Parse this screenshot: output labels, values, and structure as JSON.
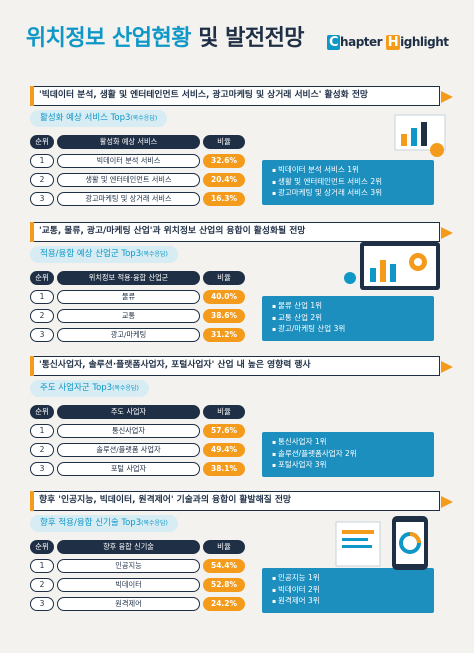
{
  "title": {
    "main": "위치정보 산업현황",
    "sub": "및 발전전망"
  },
  "brand": {
    "c": "C",
    "chapter": "hapter",
    "h": "H",
    "highlight": "ighlight"
  },
  "colors": {
    "accent": "#0e97c7",
    "orange": "#f49b1b",
    "navy": "#1f2f45"
  },
  "sections": [
    {
      "headline": "'빅데이터 분석, 생활 및 엔터테인먼트 서비스, 광고마케팅 및 상거래 서비스' 활성화 전망",
      "subtitle": "활성화 예상 서비스 Top3",
      "subtitle_note": "(복수응답)",
      "header": {
        "rank": "순위",
        "name": "활성화 예상 서비스",
        "value": "비율"
      },
      "rows": [
        {
          "rank": "1",
          "name": "빅데이터 분석 서비스",
          "value": "32.6%"
        },
        {
          "rank": "2",
          "name": "생활 및 엔터테인먼트 서비스",
          "value": "20.4%"
        },
        {
          "rank": "3",
          "name": "광고마케팅 및 상거래 서비스",
          "value": "16.3%"
        }
      ],
      "summary": [
        "빅데이터 분석 서비스 1위",
        "생활 및 엔터테인먼트 서비스 2위",
        "광고마케팅 및 상거래 서비스 3위"
      ]
    },
    {
      "headline": "'교통, 물류, 광고/마케팅 산업'과 위치정보 산업의 융합이 활성화될 전망",
      "subtitle": "적용/융합 예상 산업군 Top3",
      "subtitle_note": "(복수응답)",
      "header": {
        "rank": "순위",
        "name": "위치정보 적용·융합 산업군",
        "value": "비율"
      },
      "rows": [
        {
          "rank": "1",
          "name": "물류",
          "value": "40.0%"
        },
        {
          "rank": "2",
          "name": "교통",
          "value": "38.6%"
        },
        {
          "rank": "3",
          "name": "광고/마케팅",
          "value": "31.2%"
        }
      ],
      "summary": [
        "물류 산업 1위",
        "교통 산업 2위",
        "광고/마케팅 산업 3위"
      ]
    },
    {
      "headline": "'통신사업자, 솔루션·플랫폼사업자, 포털사업자' 산업 내 높은 영향력 행사",
      "subtitle": "주도 사업자군 Top3",
      "subtitle_note": "(복수응답)",
      "header": {
        "rank": "순위",
        "name": "주도 사업자",
        "value": "비율"
      },
      "rows": [
        {
          "rank": "1",
          "name": "통신사업자",
          "value": "57.6%"
        },
        {
          "rank": "2",
          "name": "솔루션/플랫폼 사업자",
          "value": "49.4%"
        },
        {
          "rank": "3",
          "name": "포털 사업자",
          "value": "38.1%"
        }
      ],
      "summary": [
        "통신사업자 1위",
        "솔루션/플랫폼사업자 2위",
        "포털사업자 3위"
      ]
    },
    {
      "headline": "향후 '인공지능, 빅데이터, 원격제어' 기술과의 융합이 활발해질 전망",
      "subtitle": "향후 적용/융합 신기술 Top3",
      "subtitle_note": "(복수응답)",
      "header": {
        "rank": "순위",
        "name": "향후 융합 신기술",
        "value": "비율"
      },
      "rows": [
        {
          "rank": "1",
          "name": "인공지능",
          "value": "54.4%"
        },
        {
          "rank": "2",
          "name": "빅데이터",
          "value": "52.8%"
        },
        {
          "rank": "3",
          "name": "원격제어",
          "value": "24.2%"
        }
      ],
      "summary": [
        "인공지능 1위",
        "빅데이터 2위",
        "원격제어 3위"
      ]
    }
  ]
}
